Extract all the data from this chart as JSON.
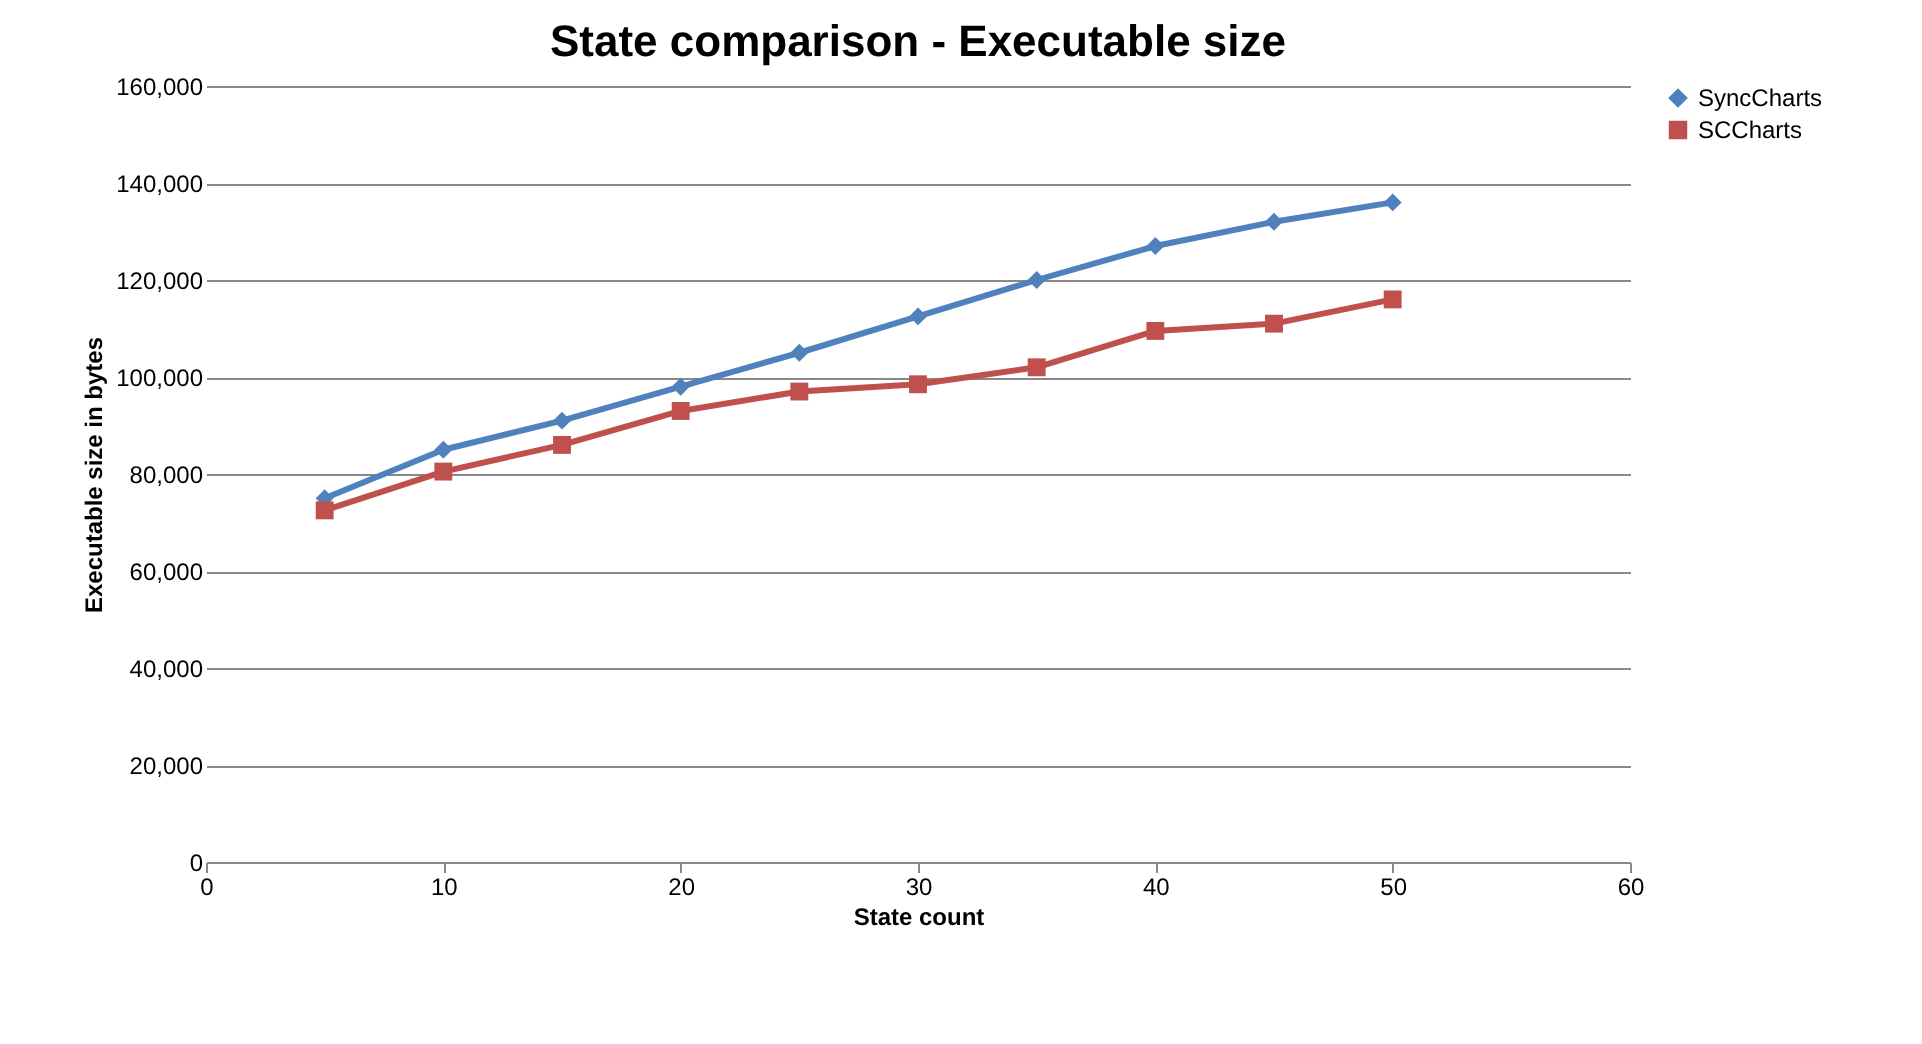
{
  "chart_data": {
    "type": "line",
    "title": "State comparison - Executable size",
    "xlabel": "State count",
    "ylabel": "Executable size in bytes",
    "x": [
      5,
      10,
      15,
      20,
      25,
      30,
      35,
      40,
      45,
      50
    ],
    "series": [
      {
        "name": "SyncCharts",
        "color": "#4f81bd",
        "marker": "diamond",
        "values": [
          75000,
          85000,
          91000,
          98000,
          105000,
          112500,
          120000,
          127000,
          132000,
          136000
        ]
      },
      {
        "name": "SCCharts",
        "color": "#c0504d",
        "marker": "square",
        "values": [
          72500,
          80500,
          86000,
          93000,
          97000,
          98500,
          102000,
          109500,
          111000,
          116000
        ]
      }
    ],
    "xlim": [
      0,
      60
    ],
    "xticks": [
      0,
      10,
      20,
      30,
      40,
      50,
      60
    ],
    "ylim": [
      0,
      160000
    ],
    "yticks": [
      0,
      {
        "value": 20000,
        "label": "20,000"
      },
      {
        "value": 40000,
        "label": "40,000"
      },
      {
        "value": 60000,
        "label": "60,000"
      },
      {
        "value": 80000,
        "label": "80,000"
      },
      {
        "value": 100000,
        "label": "100,000"
      },
      {
        "value": 120000,
        "label": "120,000"
      },
      {
        "value": 140000,
        "label": "140,000"
      },
      {
        "value": 160000,
        "label": "160,000"
      }
    ],
    "grid": "y",
    "legend": "right",
    "line_style": "solid"
  }
}
